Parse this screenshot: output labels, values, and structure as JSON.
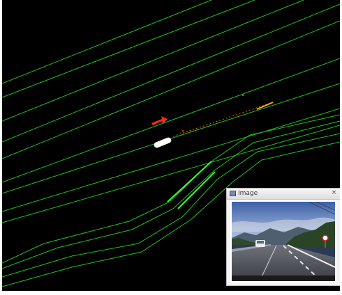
{
  "app": {
    "colors": {
      "background": "#000000",
      "lane_line": "#22c41f",
      "lane_line_bright": "#33ff22",
      "ego_vehicle": "#ffffff",
      "detected_object": "#ff2a10",
      "points": "#ff6a00"
    }
  },
  "image_window": {
    "title": "Image",
    "close_glyph": "×",
    "icon": "window-icon"
  },
  "scene": {
    "objects": [
      {
        "name": "ego-vehicle",
        "kind": "car"
      },
      {
        "name": "detected-object-arrow",
        "kind": "arrow"
      }
    ]
  }
}
